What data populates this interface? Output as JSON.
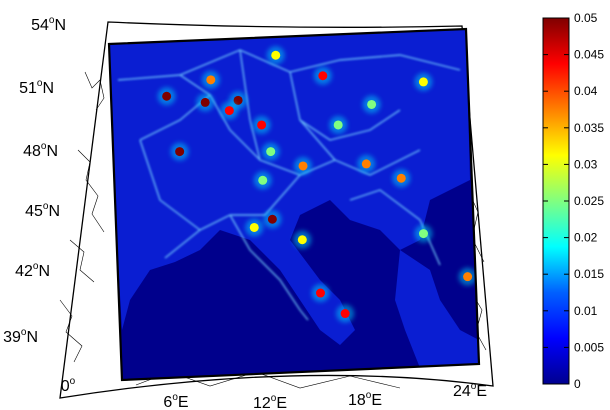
{
  "map": {
    "lat_ticks": [
      {
        "deg": "54",
        "dir": "N"
      },
      {
        "deg": "51",
        "dir": "N"
      },
      {
        "deg": "48",
        "dir": "N"
      },
      {
        "deg": "45",
        "dir": "N"
      },
      {
        "deg": "42",
        "dir": "N"
      },
      {
        "deg": "39",
        "dir": "N"
      }
    ],
    "lon_ticks": [
      {
        "deg": "0",
        "dir": ""
      },
      {
        "deg": "6",
        "dir": "E"
      },
      {
        "deg": "12",
        "dir": "E"
      },
      {
        "deg": "18",
        "dir": "E"
      },
      {
        "deg": "24",
        "dir": "E"
      }
    ],
    "ocean_color": "#00008c",
    "land_color": "#0a1ed2",
    "hotspots": [
      {
        "lon": 1.5,
        "lat": 51.5,
        "value": 0.05
      },
      {
        "lon": 4.4,
        "lat": 51.2,
        "value": 0.05
      },
      {
        "lon": 4.9,
        "lat": 52.3,
        "value": 0.04
      },
      {
        "lon": 6.9,
        "lat": 51.3,
        "value": 0.05
      },
      {
        "lon": 6.2,
        "lat": 50.8,
        "value": 0.045
      },
      {
        "lon": 8.6,
        "lat": 50.1,
        "value": 0.045
      },
      {
        "lon": 2.3,
        "lat": 48.8,
        "value": 0.05
      },
      {
        "lon": 9.1,
        "lat": 45.5,
        "value": 0.05
      },
      {
        "lon": 11.6,
        "lat": 48.1,
        "value": 0.04
      },
      {
        "lon": 13.4,
        "lat": 52.5,
        "value": 0.045
      },
      {
        "lon": 9.9,
        "lat": 53.5,
        "value": 0.035
      },
      {
        "lon": 16.4,
        "lat": 48.2,
        "value": 0.04
      },
      {
        "lon": 19.0,
        "lat": 47.5,
        "value": 0.04
      },
      {
        "lon": 14.4,
        "lat": 50.1,
        "value": 0.03
      },
      {
        "lon": 12.5,
        "lat": 41.9,
        "value": 0.045
      },
      {
        "lon": 14.3,
        "lat": 40.9,
        "value": 0.045
      },
      {
        "lon": 23.7,
        "lat": 42.7,
        "value": 0.04
      },
      {
        "lon": 7.7,
        "lat": 45.1,
        "value": 0.035
      },
      {
        "lon": 11.3,
        "lat": 44.5,
        "value": 0.035
      },
      {
        "lon": 8.5,
        "lat": 47.4,
        "value": 0.03
      },
      {
        "lon": 21.0,
        "lat": 52.2,
        "value": 0.035
      },
      {
        "lon": 17.0,
        "lat": 51.1,
        "value": 0.03
      },
      {
        "lon": 9.2,
        "lat": 48.8,
        "value": 0.03
      },
      {
        "lon": 20.5,
        "lat": 44.8,
        "value": 0.03
      }
    ]
  },
  "colorbar": {
    "min": 0,
    "max": 0.05,
    "tick_labels": [
      "0.05",
      "0.045",
      "0.04",
      "0.035",
      "0.03",
      "0.025",
      "0.02",
      "0.015",
      "0.01",
      "0.005",
      "0"
    ],
    "colors": [
      "#00008f",
      "#0000ff",
      "#0080ff",
      "#00ffff",
      "#80ff80",
      "#ffff00",
      "#ff8000",
      "#ff0000",
      "#800000"
    ]
  }
}
